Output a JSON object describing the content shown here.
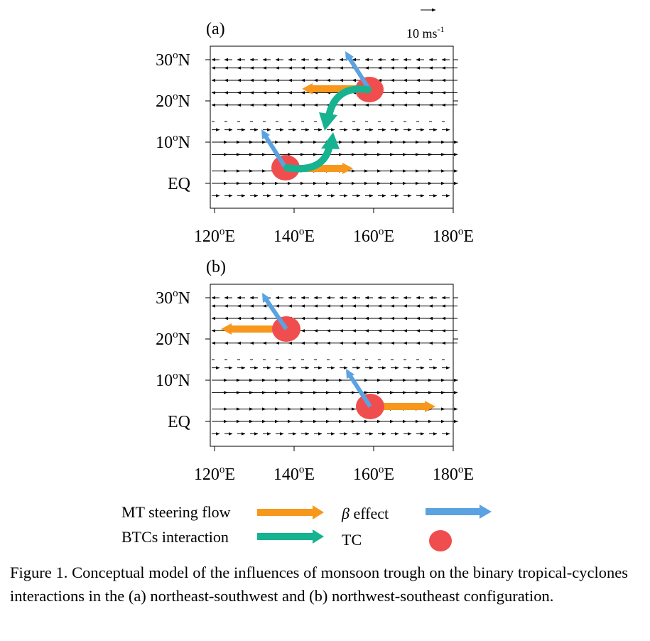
{
  "scale_arrow": {
    "label_prefix": "10 ms",
    "label_exp": "-1"
  },
  "panels": [
    {
      "label": "(a)",
      "y_ticks": [
        {
          "deg": "30",
          "suffix": "N"
        },
        {
          "deg": "20",
          "suffix": "N"
        },
        {
          "deg": "10",
          "suffix": "N"
        },
        {
          "deg": "",
          "suffix": "EQ"
        }
      ],
      "x_ticks": [
        "120",
        "140",
        "160",
        "180"
      ],
      "x_suffix": "E",
      "tcs": [
        {
          "name": "northeast TC",
          "lon": 160,
          "lat": 23
        },
        {
          "name": "southwest TC",
          "lon": 139,
          "lat": 3.5
        }
      ]
    },
    {
      "label": "(b)",
      "y_ticks": [
        {
          "deg": "30",
          "suffix": "N"
        },
        {
          "deg": "20",
          "suffix": "N"
        },
        {
          "deg": "10",
          "suffix": "N"
        },
        {
          "deg": "",
          "suffix": "EQ"
        }
      ],
      "x_ticks": [
        "120",
        "140",
        "160",
        "180"
      ],
      "x_suffix": "E",
      "tcs": [
        {
          "name": "northwest TC",
          "lon": 139,
          "lat": 23
        },
        {
          "name": "southeast TC",
          "lon": 160,
          "lat": 3.5
        }
      ]
    }
  ],
  "wind_rows": [
    {
      "lat": 30,
      "dir": "west",
      "speed": "weak"
    },
    {
      "lat": 28,
      "dir": "west",
      "speed": "strong"
    },
    {
      "lat": 25,
      "dir": "west",
      "speed": "strong"
    },
    {
      "lat": 22,
      "dir": "west",
      "speed": "strong"
    },
    {
      "lat": 19,
      "dir": "west",
      "speed": "strong"
    },
    {
      "lat": 15,
      "dir": "west",
      "speed": "calm"
    },
    {
      "lat": 13,
      "dir": "east",
      "speed": "weak"
    },
    {
      "lat": 10,
      "dir": "east",
      "speed": "strong"
    },
    {
      "lat": 7,
      "dir": "east",
      "speed": "strong"
    },
    {
      "lat": 3,
      "dir": "east",
      "speed": "strong"
    },
    {
      "lat": 0,
      "dir": "east",
      "speed": "strong"
    },
    {
      "lat": -3,
      "dir": "east",
      "speed": "weak"
    }
  ],
  "legend": {
    "mt_label": "MT steering flow",
    "btc_label": "BTCs interaction",
    "beta_symbol": "β",
    "beta_label": " effect",
    "tc_label": "TC"
  },
  "colors": {
    "mt_steering": "#F7981D",
    "btc_interaction": "#17B391",
    "beta_effect": "#5BA3E0",
    "tc": "#F04E4E",
    "wind_vector": "#000000"
  },
  "caption": "Figure 1. Conceptual model of the influences of monsoon trough on the binary tropical-cyclones interactions in the (a) northeast-southwest and (b) northwest-southeast configuration."
}
